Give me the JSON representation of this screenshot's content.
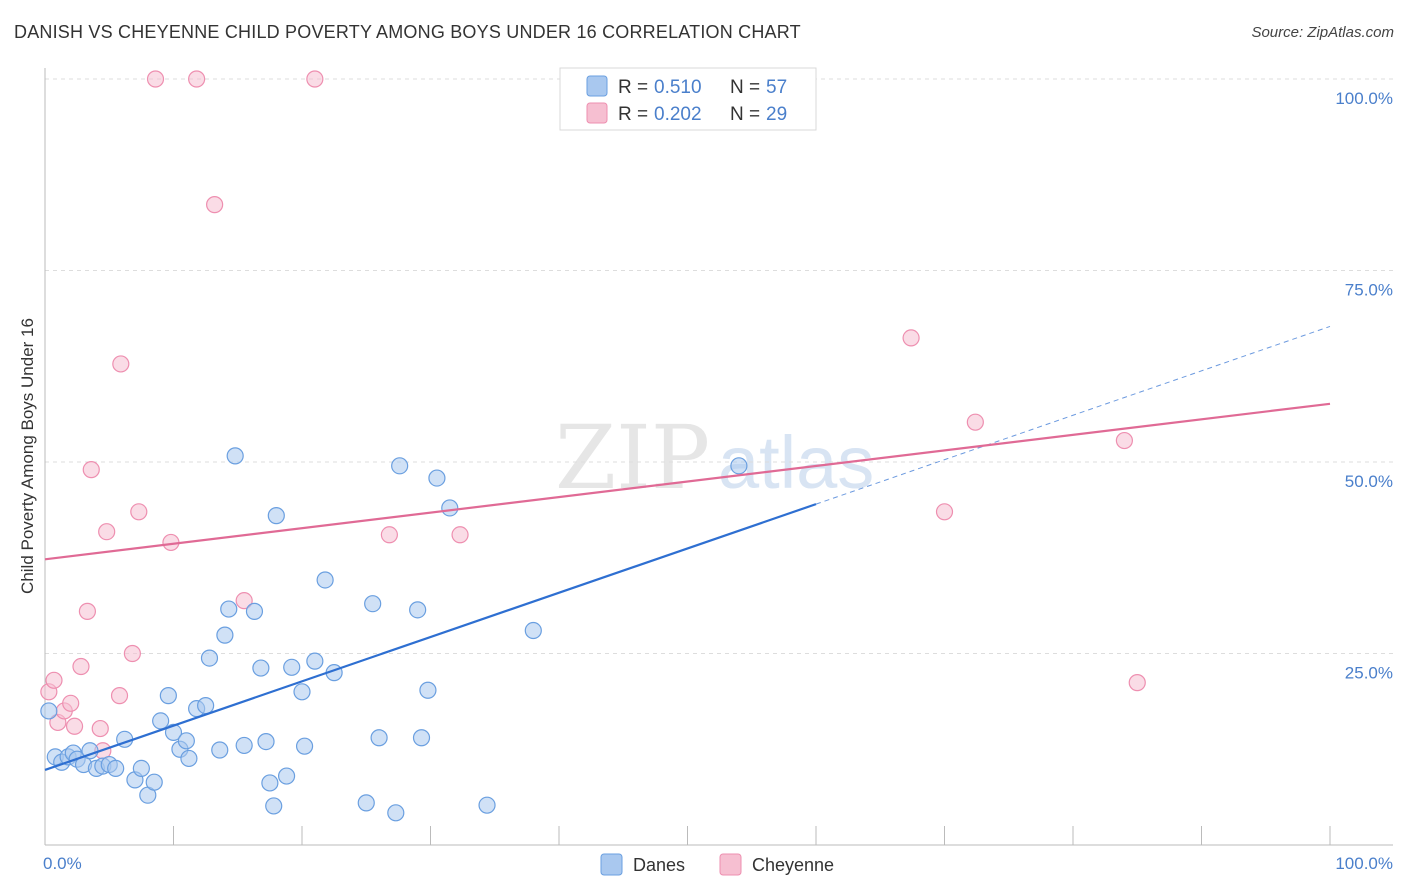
{
  "title": "DANISH VS CHEYENNE CHILD POVERTY AMONG BOYS UNDER 16 CORRELATION CHART",
  "source": "Source: ZipAtlas.com",
  "watermark": {
    "zip": "ZIP",
    "atlas": "atlas"
  },
  "colors": {
    "danes_fill": "#a9c8ef",
    "danes_stroke": "#6a9fe0",
    "danes_line": "#2e6fd1",
    "cheyenne_fill": "#f6bfd1",
    "cheyenne_stroke": "#ee8fb0",
    "cheyenne_line": "#e06a95",
    "tick_color": "#4a7fcb"
  },
  "legend_top": {
    "rows": [
      {
        "r_label": "R = ",
        "r_value": "0.510",
        "n_label": "N = ",
        "n_value": "57"
      },
      {
        "r_label": "R = ",
        "r_value": "0.202",
        "n_label": "N = ",
        "n_value": "29"
      }
    ]
  },
  "legend_bottom": [
    "Danes",
    "Cheyenne"
  ],
  "chart_data": {
    "type": "scatter",
    "title": "DANISH VS CHEYENNE CHILD POVERTY AMONG BOYS UNDER 16 CORRELATION CHART",
    "xlabel": "",
    "ylabel": "Child Poverty Among Boys Under 16",
    "xlim": [
      0,
      100
    ],
    "ylim": [
      0,
      100
    ],
    "x_tick_labels": [
      "0.0%",
      "100.0%"
    ],
    "y_tick_labels": [
      "25.0%",
      "50.0%",
      "75.0%",
      "100.0%"
    ],
    "y_ticks": [
      25,
      50,
      75,
      100
    ],
    "grid": true,
    "legend_position": "top-center",
    "series": [
      {
        "name": "Danes",
        "r": 0.51,
        "n": 57,
        "trend": {
          "x0": 0,
          "y0": 9.8,
          "x1": 60,
          "y1": 44.5,
          "dashed_to_x": 100,
          "dashed_to_y": 67.7
        },
        "points": [
          [
            0.3,
            17.5
          ],
          [
            0.8,
            11.5
          ],
          [
            1.3,
            10.8
          ],
          [
            1.8,
            11.5
          ],
          [
            2.2,
            12.0
          ],
          [
            2.5,
            11.2
          ],
          [
            3.0,
            10.5
          ],
          [
            3.5,
            12.3
          ],
          [
            4.0,
            10.0
          ],
          [
            4.5,
            10.3
          ],
          [
            5.0,
            10.5
          ],
          [
            5.5,
            10.0
          ],
          [
            6.2,
            13.8
          ],
          [
            7.0,
            8.5
          ],
          [
            7.5,
            10.0
          ],
          [
            8.0,
            6.5
          ],
          [
            8.5,
            8.2
          ],
          [
            9.0,
            16.2
          ],
          [
            9.6,
            19.5
          ],
          [
            10.0,
            14.7
          ],
          [
            10.5,
            12.5
          ],
          [
            11.0,
            13.6
          ],
          [
            11.2,
            11.3
          ],
          [
            11.8,
            17.8
          ],
          [
            12.5,
            18.2
          ],
          [
            12.8,
            24.4
          ],
          [
            13.6,
            12.4
          ],
          [
            14.0,
            27.4
          ],
          [
            14.3,
            30.8
          ],
          [
            14.8,
            50.8
          ],
          [
            15.5,
            13.0
          ],
          [
            16.3,
            30.5
          ],
          [
            16.8,
            23.1
          ],
          [
            17.2,
            13.5
          ],
          [
            17.5,
            8.1
          ],
          [
            17.8,
            5.1
          ],
          [
            18.0,
            43.0
          ],
          [
            18.8,
            9.0
          ],
          [
            19.2,
            23.2
          ],
          [
            20.0,
            20.0
          ],
          [
            20.2,
            12.9
          ],
          [
            21.0,
            24.0
          ],
          [
            21.8,
            34.6
          ],
          [
            22.5,
            22.5
          ],
          [
            25.0,
            5.5
          ],
          [
            25.5,
            31.5
          ],
          [
            26.0,
            14.0
          ],
          [
            27.3,
            4.2
          ],
          [
            27.6,
            49.5
          ],
          [
            29.0,
            30.7
          ],
          [
            29.3,
            14.0
          ],
          [
            29.8,
            20.2
          ],
          [
            30.5,
            47.9
          ],
          [
            31.5,
            44.0
          ],
          [
            34.4,
            5.2
          ],
          [
            38.0,
            28.0
          ],
          [
            54.0,
            49.5
          ]
        ]
      },
      {
        "name": "Cheyenne",
        "r": 0.202,
        "n": 29,
        "trend": {
          "x0": 0,
          "y0": 37.3,
          "x1": 100,
          "y1": 57.6
        },
        "points": [
          [
            0.3,
            20.0
          ],
          [
            0.7,
            21.5
          ],
          [
            1.0,
            16.0
          ],
          [
            1.5,
            17.5
          ],
          [
            2.0,
            18.5
          ],
          [
            2.3,
            15.5
          ],
          [
            2.8,
            23.3
          ],
          [
            3.3,
            30.5
          ],
          [
            3.6,
            49.0
          ],
          [
            4.3,
            15.2
          ],
          [
            4.5,
            12.3
          ],
          [
            4.8,
            40.9
          ],
          [
            5.8,
            19.5
          ],
          [
            5.9,
            62.8
          ],
          [
            6.8,
            25.0
          ],
          [
            7.3,
            43.5
          ],
          [
            8.6,
            100.0
          ],
          [
            9.8,
            39.5
          ],
          [
            11.8,
            100.0
          ],
          [
            13.2,
            83.6
          ],
          [
            15.5,
            31.9
          ],
          [
            21.0,
            100.0
          ],
          [
            26.8,
            40.5
          ],
          [
            32.3,
            40.5
          ],
          [
            67.4,
            66.2
          ],
          [
            70.0,
            43.5
          ],
          [
            72.4,
            55.2
          ],
          [
            85.0,
            21.2
          ],
          [
            84.0,
            52.8
          ]
        ]
      }
    ]
  }
}
